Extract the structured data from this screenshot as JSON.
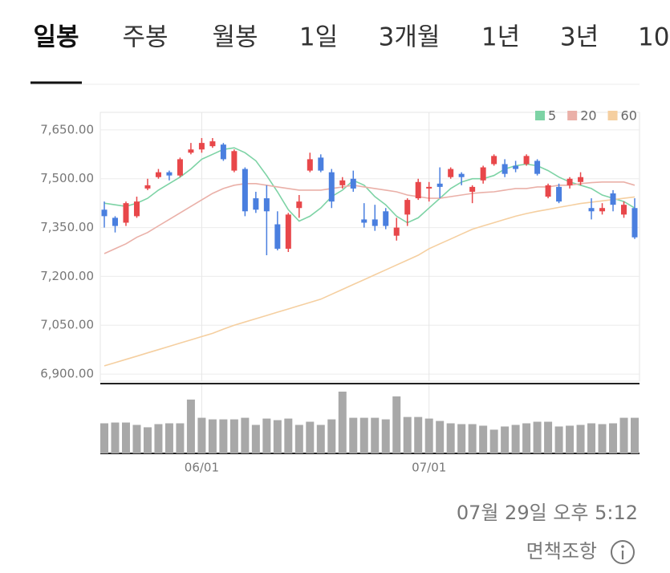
{
  "tabs": [
    "일봉",
    "주봉",
    "월봉",
    "1일",
    "3개월",
    "1년",
    "3년",
    "10"
  ],
  "chart_data": {
    "type": "candlestick",
    "categories": [
      null,
      null,
      null,
      null,
      null,
      null,
      null,
      null,
      null,
      "06/01",
      null,
      null,
      null,
      null,
      null,
      null,
      null,
      null,
      null,
      null,
      null,
      null,
      null,
      null,
      null,
      null,
      null,
      null,
      null,
      null,
      "07/01",
      null,
      null,
      null,
      null,
      null,
      null,
      null,
      null,
      null,
      null,
      null,
      null,
      null,
      null,
      null,
      null,
      null,
      null,
      null
    ],
    "open": [
      7405,
      7380,
      7365,
      7385,
      7470,
      7505,
      7520,
      7510,
      7580,
      7590,
      7600,
      7605,
      7525,
      7530,
      7440,
      7440,
      7360,
      7285,
      7410,
      7525,
      7565,
      7520,
      7480,
      7500,
      7375,
      7375,
      7400,
      7325,
      7390,
      7440,
      7470,
      7485,
      7505,
      7515,
      7460,
      7495,
      7545,
      7545,
      7540,
      7545,
      7555,
      7445,
      7475,
      7480,
      7490,
      7410,
      7400,
      7455,
      7390,
      7410
    ],
    "high": [
      7430,
      7385,
      7430,
      7445,
      7500,
      7530,
      7525,
      7565,
      7610,
      7625,
      7625,
      7610,
      7590,
      7535,
      7460,
      7480,
      7400,
      7395,
      7450,
      7580,
      7575,
      7530,
      7505,
      7525,
      7425,
      7420,
      7410,
      7380,
      7440,
      7500,
      7490,
      7535,
      7535,
      7520,
      7480,
      7540,
      7575,
      7560,
      7555,
      7575,
      7560,
      7485,
      7485,
      7505,
      7520,
      7440,
      7425,
      7465,
      7430,
      7440
    ],
    "low": [
      7350,
      7335,
      7355,
      7380,
      7465,
      7500,
      7495,
      7505,
      7575,
      7580,
      7595,
      7555,
      7520,
      7385,
      7395,
      7265,
      7280,
      7275,
      7380,
      7520,
      7520,
      7410,
      7470,
      7460,
      7350,
      7340,
      7345,
      7310,
      7355,
      7435,
      7430,
      7440,
      7500,
      7480,
      7425,
      7485,
      7540,
      7505,
      7520,
      7540,
      7510,
      7440,
      7425,
      7470,
      7480,
      7375,
      7390,
      7400,
      7380,
      7315
    ],
    "close": [
      7385,
      7355,
      7425,
      7430,
      7480,
      7520,
      7510,
      7560,
      7590,
      7610,
      7615,
      7560,
      7585,
      7400,
      7405,
      7400,
      7285,
      7390,
      7430,
      7560,
      7525,
      7430,
      7495,
      7470,
      7365,
      7355,
      7355,
      7350,
      7435,
      7490,
      7475,
      7475,
      7530,
      7505,
      7475,
      7535,
      7570,
      7515,
      7530,
      7570,
      7515,
      7480,
      7430,
      7500,
      7505,
      7400,
      7410,
      7420,
      7420,
      7320
    ],
    "up_color": "#e8474a",
    "down_color": "#4a7fdf",
    "series": [
      {
        "name": "5",
        "color": "#7dd3a5",
        "values": [
          7425,
          7420,
          7415,
          7425,
          7440,
          7465,
          7485,
          7505,
          7530,
          7560,
          7575,
          7590,
          7595,
          7580,
          7555,
          7510,
          7460,
          7405,
          7370,
          7385,
          7410,
          7445,
          7465,
          7495,
          7480,
          7445,
          7420,
          7385,
          7365,
          7380,
          7410,
          7440,
          7470,
          7490,
          7500,
          7500,
          7510,
          7530,
          7540,
          7545,
          7540,
          7525,
          7505,
          7490,
          7480,
          7470,
          7450,
          7440,
          7430,
          7410
        ]
      },
      {
        "name": "20",
        "color": "#eab0a8",
        "values": [
          7270,
          7285,
          7300,
          7320,
          7335,
          7355,
          7375,
          7395,
          7415,
          7435,
          7455,
          7470,
          7480,
          7485,
          7485,
          7480,
          7475,
          7470,
          7465,
          7465,
          7465,
          7470,
          7475,
          7480,
          7475,
          7470,
          7465,
          7460,
          7450,
          7445,
          7440,
          7440,
          7445,
          7450,
          7455,
          7458,
          7460,
          7465,
          7470,
          7470,
          7475,
          7475,
          7480,
          7480,
          7485,
          7488,
          7490,
          7490,
          7490,
          7480
        ]
      },
      {
        "name": "60",
        "color": "#f5cfa0",
        "values": [
          6925,
          6935,
          6945,
          6955,
          6965,
          6975,
          6985,
          6995,
          7005,
          7015,
          7025,
          7038,
          7050,
          7060,
          7070,
          7080,
          7090,
          7100,
          7110,
          7120,
          7130,
          7145,
          7160,
          7175,
          7190,
          7205,
          7220,
          7235,
          7250,
          7265,
          7285,
          7300,
          7315,
          7330,
          7345,
          7355,
          7365,
          7375,
          7385,
          7393,
          7400,
          7406,
          7412,
          7418,
          7424,
          7428,
          7432,
          7436,
          7440,
          7444
        ]
      }
    ],
    "volume": [
      38,
      39,
      39,
      36,
      33,
      37,
      38,
      38,
      68,
      45,
      43,
      43,
      43,
      45,
      36,
      44,
      42,
      44,
      36,
      40,
      36,
      43,
      78,
      45,
      45,
      45,
      43,
      72,
      46,
      46,
      44,
      41,
      38,
      37,
      37,
      35,
      30,
      34,
      36,
      38,
      40,
      40,
      34,
      35,
      36,
      38,
      37,
      38,
      45,
      45
    ],
    "volume_color": "#a8a8a8",
    "ylim": [
      6878,
      7704
    ],
    "yticks": [
      {
        "value": 6900,
        "label": "6,900.00"
      },
      {
        "value": 7050,
        "label": "7,050.00"
      },
      {
        "value": 7200,
        "label": "7,200.00"
      },
      {
        "value": 7350,
        "label": "7,350.00"
      },
      {
        "value": 7500,
        "label": "7,500.00"
      },
      {
        "value": 7650,
        "label": "7,650.00"
      }
    ],
    "grid": true
  },
  "timestamp": "07월 29일 오후 5:12",
  "disclaimer": "면책조항"
}
